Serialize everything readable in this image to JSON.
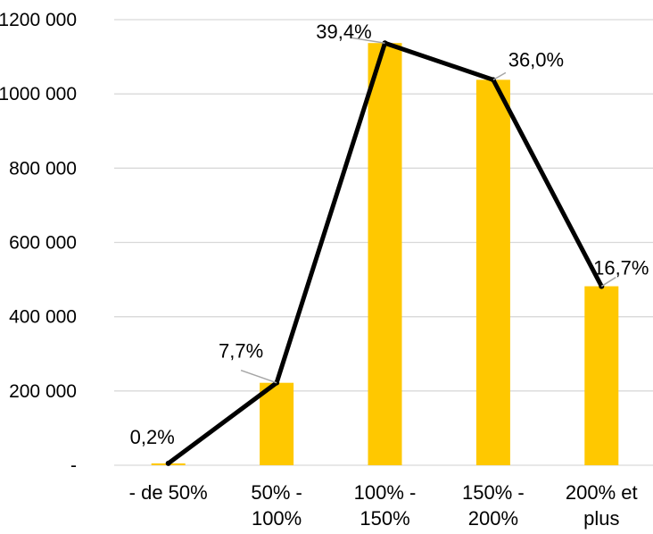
{
  "chart_data": {
    "type": "bar",
    "categories": [
      [
        "- de 50%"
      ],
      [
        "50% -",
        "100%"
      ],
      [
        "100% -",
        "150%"
      ],
      [
        "150% -",
        "200%"
      ],
      [
        "200% et",
        "plus"
      ]
    ],
    "series": [
      {
        "type": "bar",
        "values": [
          5000,
          222000,
          1137000,
          1038000,
          482000
        ],
        "color": "#FFC800"
      },
      {
        "type": "line",
        "values": [
          5000,
          222000,
          1137000,
          1038000,
          482000
        ],
        "color": "#000000"
      }
    ],
    "data_labels": [
      "0,2%",
      "7,7%",
      "39,4%",
      "36,0%",
      "16,7%"
    ],
    "ylim": [
      0,
      1200000
    ],
    "yticks": [
      {
        "value": 0,
        "label": "-"
      },
      {
        "value": 200000,
        "label": "200 000"
      },
      {
        "value": 400000,
        "label": "400 000"
      },
      {
        "value": 600000,
        "label": "600 000"
      },
      {
        "value": 800000,
        "label": "800 000"
      },
      {
        "value": 1000000,
        "label": "1000 000"
      },
      {
        "value": 1200000,
        "label": "1200 000"
      }
    ],
    "grid": true,
    "title": "",
    "xlabel": "",
    "ylabel": ""
  }
}
